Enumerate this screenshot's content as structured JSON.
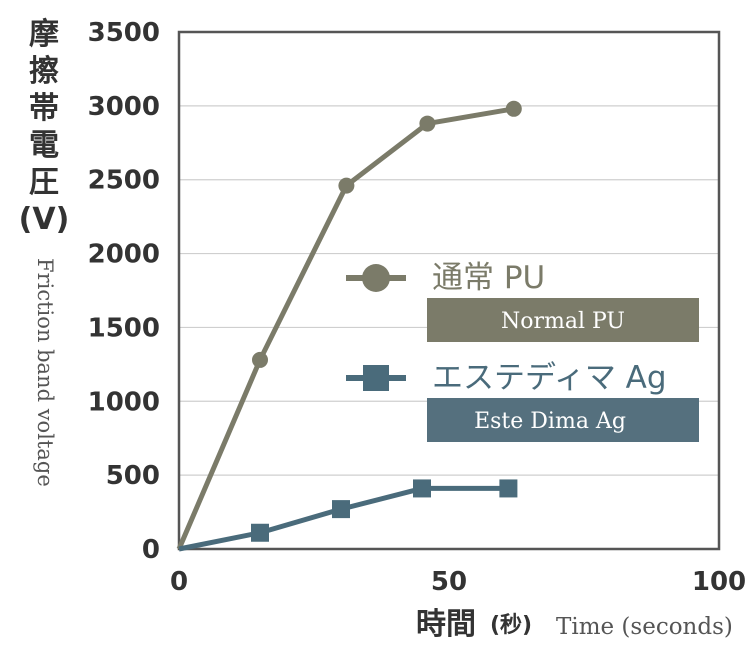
{
  "chart_data": {
    "type": "line",
    "ylabel": [
      "摩",
      "擦",
      "帯",
      "電",
      "圧",
      "(V)"
    ],
    "ylabel_en": "Friction band voltage",
    "xlabel": "時間",
    "xlabel_unit": "(秒)",
    "xlabel_en": "Time (seconds)",
    "xlim": [
      0,
      100
    ],
    "ylim": [
      0,
      3500
    ],
    "xticks": [
      0,
      50,
      100
    ],
    "yticks": [
      0,
      500,
      1000,
      1500,
      2000,
      2500,
      3000,
      3500
    ],
    "grid": true,
    "legend_position": "center-right",
    "series": [
      {
        "name": "通常 PU",
        "name_en": "Normal PU",
        "color": "#7b7b69",
        "marker": "circle",
        "x": [
          0,
          15,
          31,
          46,
          62
        ],
        "y": [
          0,
          1280,
          2460,
          2880,
          2980
        ]
      },
      {
        "name": "エステディマ Ag",
        "name_en": "Este Dima Ag",
        "color": "#4a6b7b",
        "marker": "square",
        "x": [
          0,
          15,
          30,
          45,
          61
        ],
        "y": [
          0,
          110,
          270,
          410,
          410
        ]
      }
    ]
  }
}
